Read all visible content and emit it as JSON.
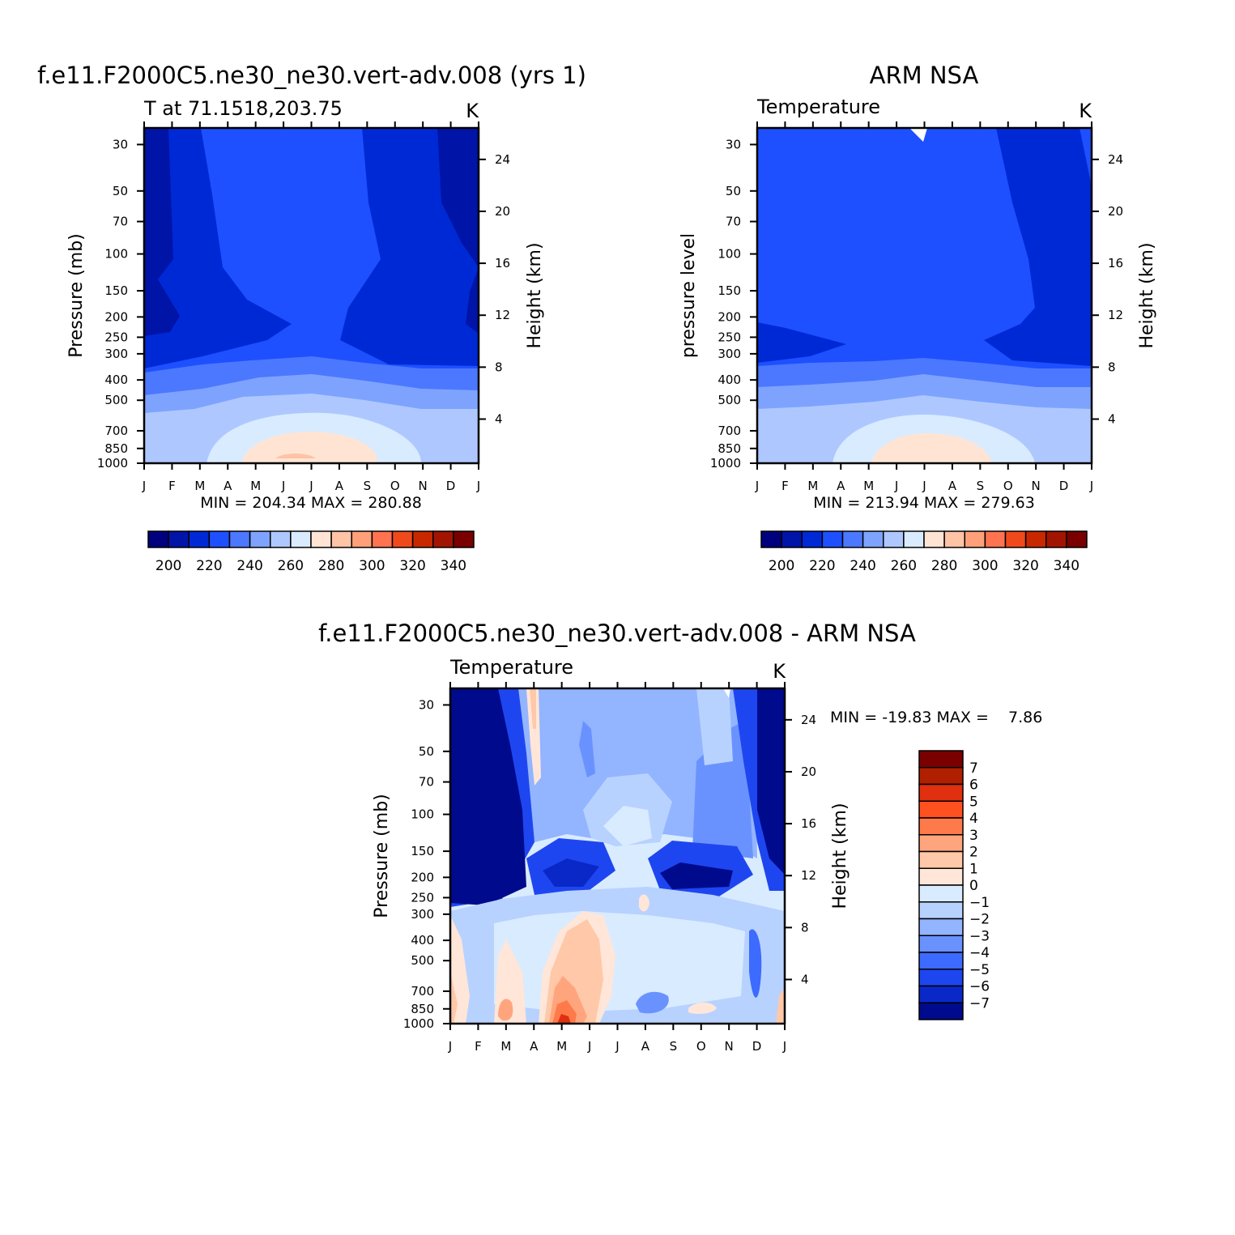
{
  "chart_data": [
    {
      "type": "heatmap",
      "title": "f.e11.F2000C5.ne30_ne30.vert-adv.008 (yrs 1)",
      "subtitle_left": "T at 71.1518,203.75",
      "subtitle_right": "K",
      "ylabel": "Pressure (mb)",
      "ylabel_right": "Height (km)",
      "x_ticks": [
        "J",
        "F",
        "M",
        "A",
        "M",
        "J",
        "J",
        "A",
        "S",
        "O",
        "N",
        "D",
        "J"
      ],
      "y_ticks": [
        "30",
        "50",
        "70",
        "100",
        "150",
        "200",
        "250",
        "300",
        "400",
        "500",
        "700",
        "850",
        "1000"
      ],
      "y_ticks_right": [
        "24",
        "20",
        "16",
        "12",
        "8",
        "4"
      ],
      "y_scale": "log",
      "stats": "MIN = 204.34 MAX = 280.88",
      "colorbar": {
        "orientation": "horizontal",
        "labels": [
          "200",
          "220",
          "240",
          "260",
          "280",
          "300",
          "320",
          "340"
        ],
        "colors": [
          "#00007f",
          "#0014a8",
          "#0029d6",
          "#1e50ff",
          "#4c78ff",
          "#7ea3ff",
          "#aec8ff",
          "#d9ebff",
          "#ffe4d4",
          "#ffc3a6",
          "#ffa07a",
          "#ff7350",
          "#f04a1c",
          "#c82800",
          "#a31400",
          "#7a0000"
        ]
      },
      "levels_visible": [
        212,
        220,
        228,
        236,
        244,
        252,
        260,
        268,
        276
      ]
    },
    {
      "type": "heatmap",
      "title": "ARM NSA",
      "subtitle_left": "Temperature",
      "subtitle_right": "K",
      "ylabel": "pressure level",
      "ylabel_right": "Height (km)",
      "x_ticks": [
        "J",
        "F",
        "M",
        "A",
        "M",
        "J",
        "J",
        "A",
        "S",
        "O",
        "N",
        "D",
        "J"
      ],
      "y_ticks": [
        "30",
        "50",
        "70",
        "100",
        "150",
        "200",
        "250",
        "300",
        "400",
        "500",
        "700",
        "850",
        "1000"
      ],
      "y_ticks_right": [
        "24",
        "20",
        "16",
        "12",
        "8",
        "4"
      ],
      "y_scale": "log",
      "stats": "MIN = 213.94 MAX = 279.63",
      "colorbar": {
        "orientation": "horizontal",
        "labels": [
          "200",
          "220",
          "240",
          "260",
          "280",
          "300",
          "320",
          "340"
        ],
        "colors": [
          "#00007f",
          "#0014a8",
          "#0029d6",
          "#1e50ff",
          "#4c78ff",
          "#7ea3ff",
          "#aec8ff",
          "#d9ebff",
          "#ffe4d4",
          "#ffc3a6",
          "#ffa07a",
          "#ff7350",
          "#f04a1c",
          "#c82800",
          "#a31400",
          "#7a0000"
        ]
      }
    },
    {
      "type": "heatmap",
      "title": "f.e11.F2000C5.ne30_ne30.vert-adv.008 - ARM NSA",
      "subtitle_left": "Temperature",
      "subtitle_right": "K",
      "ylabel": "Pressure (mb)",
      "ylabel_right": "Height (km)",
      "x_ticks": [
        "J",
        "F",
        "M",
        "A",
        "M",
        "J",
        "J",
        "A",
        "S",
        "O",
        "N",
        "D",
        "J"
      ],
      "y_ticks": [
        "30",
        "50",
        "70",
        "100",
        "150",
        "200",
        "250",
        "300",
        "400",
        "500",
        "700",
        "850",
        "1000"
      ],
      "y_ticks_right": [
        "24",
        "20",
        "16",
        "12",
        "8",
        "4"
      ],
      "y_scale": "log",
      "stats": "MIN = -19.83 MAX =    7.86",
      "colorbar": {
        "orientation": "vertical",
        "labels": [
          "7",
          "6",
          "5",
          "4",
          "3",
          "2",
          "1",
          "0",
          "-1",
          "-2",
          "-3",
          "-4",
          "-5",
          "-6",
          "-7"
        ],
        "colors": [
          "#7a0000",
          "#b02000",
          "#e03010",
          "#ff5020",
          "#ff7a4a",
          "#ffa57e",
          "#ffc8a8",
          "#ffe6d8",
          "#d9ebff",
          "#b8d2ff",
          "#93b4ff",
          "#6a92ff",
          "#3d6aff",
          "#1e46f0",
          "#0a28c8",
          "#000a8c"
        ]
      }
    }
  ]
}
